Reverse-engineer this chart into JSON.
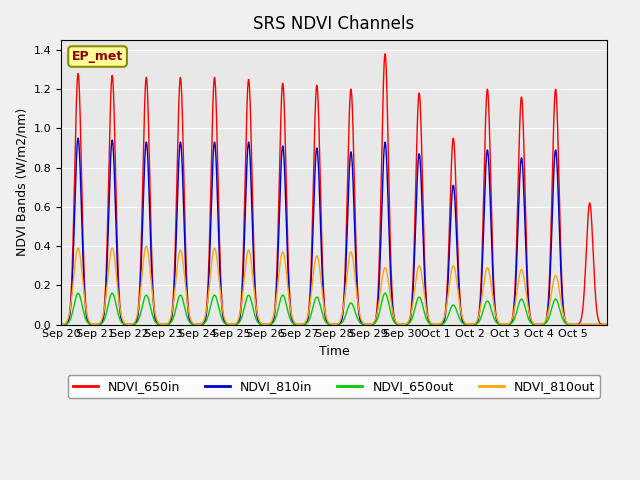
{
  "title": "SRS NDVI Channels",
  "xlabel": "Time",
  "ylabel": "NDVI Bands (W/m2/nm)",
  "ylim": [
    0,
    1.45
  ],
  "annotation_text": "EP_met",
  "background_color": "#f0f0f0",
  "plot_bg_color": "#e8e8e8",
  "series": {
    "NDVI_650in": {
      "color": "#ff0000",
      "label": "NDVI_650in"
    },
    "NDVI_810in": {
      "color": "#0000cc",
      "label": "NDVI_810in"
    },
    "NDVI_650out": {
      "color": "#00cc00",
      "label": "NDVI_650out"
    },
    "NDVI_810out": {
      "color": "#ffa500",
      "label": "NDVI_810out"
    }
  },
  "x_tick_labels": [
    "Sep 20",
    "Sep 21",
    "Sep 22",
    "Sep 23",
    "Sep 24",
    "Sep 25",
    "Sep 26",
    "Sep 27",
    "Sep 28",
    "Sep 29",
    "Sep 30",
    "Oct 1",
    "Oct 2",
    "Oct 3",
    "Oct 4",
    "Oct 5"
  ],
  "yticks": [
    0.0,
    0.2,
    0.4,
    0.6,
    0.8,
    1.0,
    1.2,
    1.4
  ],
  "peaks_650in": [
    1.28,
    1.27,
    1.26,
    1.26,
    1.26,
    1.25,
    1.23,
    1.22,
    1.2,
    1.38,
    1.18,
    0.95,
    1.2,
    1.16,
    1.2,
    0.62
  ],
  "peaks_810in": [
    0.95,
    0.94,
    0.93,
    0.93,
    0.93,
    0.93,
    0.91,
    0.9,
    0.88,
    0.93,
    0.87,
    0.71,
    0.89,
    0.85,
    0.89,
    0.0
  ],
  "peaks_650out": [
    0.16,
    0.16,
    0.15,
    0.15,
    0.15,
    0.15,
    0.15,
    0.14,
    0.11,
    0.16,
    0.14,
    0.1,
    0.12,
    0.13,
    0.13,
    0.0
  ],
  "peaks_810out": [
    0.39,
    0.39,
    0.4,
    0.38,
    0.39,
    0.38,
    0.37,
    0.35,
    0.37,
    0.29,
    0.3,
    0.3,
    0.29,
    0.28,
    0.25,
    0.0
  ],
  "n_days": 16
}
